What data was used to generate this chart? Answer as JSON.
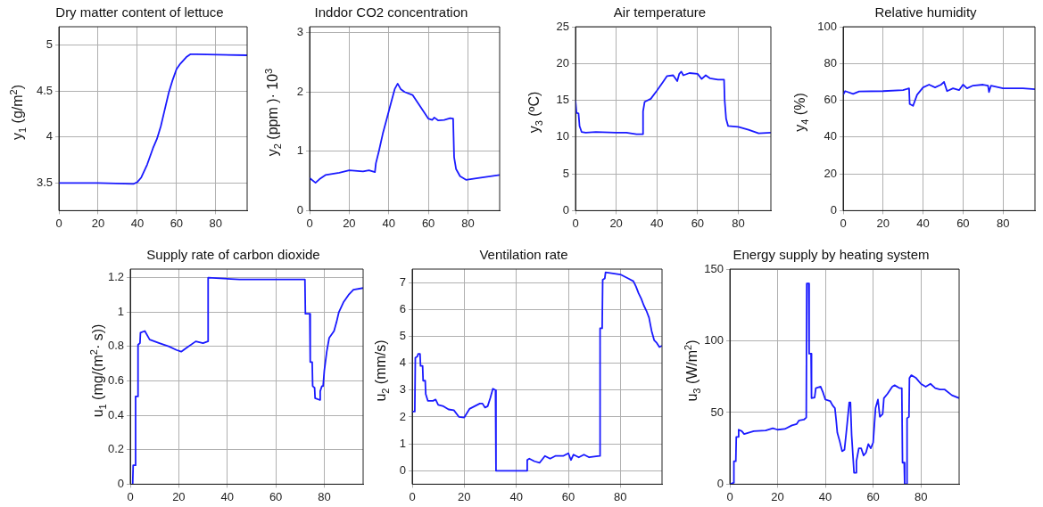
{
  "chart_data": [
    {
      "type": "line",
      "title": "Dry matter content of lettuce",
      "ylabel": "y$_{1}$  (g/m$^{2}$)",
      "color": "#1a1aff",
      "marker": "none",
      "grid": true,
      "xlim": [
        0,
        96
      ],
      "xticks": [
        0,
        20,
        40,
        60,
        80
      ],
      "ylim": [
        3.2,
        5.2
      ],
      "yticks": [
        3.5,
        4,
        4.5,
        5
      ],
      "x": [
        0,
        20,
        38,
        40,
        42,
        45,
        48,
        50,
        52,
        54,
        56,
        58,
        60,
        62,
        65,
        67,
        70,
        96
      ],
      "values": [
        3.5,
        3.5,
        3.49,
        3.51,
        3.56,
        3.7,
        3.88,
        3.98,
        4.12,
        4.3,
        4.48,
        4.62,
        4.74,
        4.8,
        4.87,
        4.9,
        4.9,
        4.89
      ]
    },
    {
      "type": "line",
      "title": "Inddor CO2 concentration",
      "ylabel": "y$_{2}$ (ppm )· 10$^{3}$",
      "color": "#1a1aff",
      "marker": "none",
      "grid": true,
      "xlim": [
        0,
        96
      ],
      "xticks": [
        0,
        20,
        40,
        60,
        80
      ],
      "ylim": [
        0,
        3.1
      ],
      "yticks": [
        0,
        1,
        2,
        3
      ],
      "x": [
        0,
        3,
        5,
        8,
        15,
        20,
        27,
        30,
        33,
        33.5,
        35,
        37,
        39,
        41,
        43,
        44.5,
        46,
        48,
        52,
        55,
        58,
        60,
        62,
        63,
        65,
        68,
        71,
        72.5,
        73,
        74,
        76,
        79,
        85,
        96
      ],
      "values": [
        0.55,
        0.47,
        0.53,
        0.6,
        0.64,
        0.68,
        0.66,
        0.68,
        0.65,
        0.8,
        1.0,
        1.3,
        1.55,
        1.8,
        2.05,
        2.14,
        2.05,
        2.0,
        1.95,
        1.8,
        1.65,
        1.55,
        1.53,
        1.57,
        1.52,
        1.53,
        1.56,
        1.55,
        0.9,
        0.7,
        0.58,
        0.52,
        0.55,
        0.6
      ]
    },
    {
      "type": "line",
      "title": "Air temperature",
      "ylabel": "y$_{3}$ (ºC)",
      "color": "#1a1aff",
      "marker": "none",
      "grid": true,
      "xlim": [
        0,
        96
      ],
      "xticks": [
        0,
        20,
        40,
        60,
        80
      ],
      "ylim": [
        0,
        25
      ],
      "yticks": [
        0,
        5,
        10,
        15,
        20,
        25
      ],
      "x": [
        0,
        0.5,
        1.5,
        2,
        3,
        5,
        10,
        20,
        25,
        30,
        33,
        33.2,
        34,
        37,
        40,
        43,
        45,
        48,
        50,
        51,
        52,
        53,
        56,
        60,
        62,
        64,
        66,
        70,
        73,
        73.3,
        74,
        75,
        80,
        85,
        90,
        96
      ],
      "values": [
        15,
        13.3,
        13.2,
        11.5,
        10.7,
        10.6,
        10.7,
        10.6,
        10.6,
        10.4,
        10.4,
        13.5,
        14.8,
        15.2,
        16.3,
        17.5,
        18.3,
        18.4,
        17.6,
        18.6,
        18.9,
        18.4,
        18.7,
        18.6,
        17.9,
        18.4,
        18.0,
        17.8,
        17.8,
        15,
        12.5,
        11.5,
        11.4,
        11.0,
        10.5,
        10.6
      ]
    },
    {
      "type": "line",
      "title": "Relative humidity",
      "ylabel": "y$_{4}$ (%)",
      "color": "#1a1aff",
      "marker": "none",
      "grid": true,
      "xlim": [
        0,
        96
      ],
      "xticks": [
        0,
        20,
        40,
        60,
        80
      ],
      "ylim": [
        0,
        100
      ],
      "yticks": [
        0,
        20,
        40,
        60,
        80,
        100
      ],
      "x": [
        0,
        1,
        5,
        8,
        20,
        30,
        33,
        33.3,
        35,
        37,
        40,
        43,
        46,
        49,
        50.5,
        52,
        55,
        58,
        60,
        62,
        65,
        70,
        72.5,
        73,
        74,
        80,
        90,
        96
      ],
      "values": [
        63,
        65,
        63.5,
        64.8,
        65,
        65.5,
        66.5,
        58,
        57,
        63,
        67,
        68.5,
        67,
        68.5,
        70,
        65,
        66.5,
        65.5,
        68.5,
        66.5,
        68,
        68.5,
        68,
        64.5,
        68,
        66.5,
        66.5,
        66
      ]
    },
    {
      "type": "line",
      "title": "Supply rate of carbon dioxide",
      "ylabel": "u$_{1}$ (mg/(m$^{2}$· s))",
      "color": "#1a1aff",
      "marker": "none",
      "grid": true,
      "xlim": [
        0,
        96
      ],
      "xticks": [
        0,
        20,
        40,
        60,
        80
      ],
      "ylim": [
        0,
        1.25
      ],
      "yticks": [
        0,
        0.2,
        0.4,
        0.6,
        0.8,
        1,
        1.2
      ],
      "x": [
        1,
        1.2,
        2,
        2.2,
        3,
        3.2,
        4,
        4.2,
        6,
        8,
        12,
        16,
        19,
        21,
        23,
        27,
        30,
        32,
        32.1,
        45,
        55,
        72,
        72.2,
        74,
        74.2,
        75,
        75.2,
        76,
        76.2,
        78,
        78.3,
        79,
        79.5,
        80,
        81,
        82,
        84,
        85,
        86,
        88,
        90,
        92,
        96
      ],
      "values": [
        0,
        0.11,
        0.11,
        0.51,
        0.51,
        0.81,
        0.82,
        0.88,
        0.89,
        0.84,
        0.82,
        0.8,
        0.78,
        0.77,
        0.79,
        0.83,
        0.82,
        0.83,
        1.2,
        1.19,
        1.19,
        1.19,
        0.99,
        0.99,
        0.71,
        0.71,
        0.57,
        0.56,
        0.5,
        0.49,
        0.54,
        0.57,
        0.57,
        0.66,
        0.77,
        0.85,
        0.89,
        0.94,
        1.0,
        1.06,
        1.1,
        1.13,
        1.14
      ]
    },
    {
      "type": "line",
      "title": "Ventilation rate",
      "ylabel": "u$_{2}$ (mm/s)",
      "color": "#1a1aff",
      "marker": "none",
      "grid": true,
      "xlim": [
        0,
        96
      ],
      "xticks": [
        0,
        20,
        40,
        60,
        80
      ],
      "ylim": [
        -0.5,
        7.5
      ],
      "yticks": [
        0,
        1,
        2,
        3,
        4,
        5,
        6,
        7
      ],
      "x": [
        0,
        1,
        1.2,
        2,
        2.3,
        3,
        3.2,
        4,
        4.2,
        5,
        5.2,
        6,
        8,
        9,
        10,
        12,
        14,
        16,
        18,
        20,
        22,
        24,
        26,
        27,
        28,
        29,
        30,
        31,
        32,
        32.2,
        44,
        44.2,
        45,
        47,
        49,
        51,
        53,
        55,
        58,
        60,
        61,
        62,
        64,
        66,
        68,
        72,
        72.2,
        73,
        73.2,
        74,
        74.3,
        80,
        83,
        85,
        86,
        87,
        88,
        89,
        90,
        91,
        92,
        93,
        94,
        95,
        96
      ],
      "values": [
        2.2,
        2.2,
        4.2,
        4.25,
        4.35,
        4.35,
        3.9,
        3.9,
        3.35,
        3.35,
        2.85,
        2.6,
        2.6,
        2.65,
        2.45,
        2.4,
        2.28,
        2.25,
        2.0,
        1.98,
        2.3,
        2.4,
        2.5,
        2.5,
        2.35,
        2.4,
        2.7,
        3.05,
        3.0,
        0,
        0,
        0.4,
        0.45,
        0.35,
        0.3,
        0.55,
        0.45,
        0.55,
        0.55,
        0.65,
        0.4,
        0.6,
        0.5,
        0.6,
        0.5,
        0.55,
        5.3,
        5.3,
        7.1,
        7.15,
        7.38,
        7.3,
        7.15,
        7.05,
        6.85,
        6.6,
        6.4,
        6.15,
        5.95,
        5.7,
        5.2,
        4.85,
        4.75,
        4.6,
        4.65
      ]
    },
    {
      "type": "line",
      "title": "Energy supply by heating system",
      "ylabel": "u$_{3}$ (W/m$^{2}$)",
      "color": "#1a1aff",
      "marker": "none",
      "grid": true,
      "xlim": [
        0,
        96
      ],
      "xticks": [
        0,
        20,
        40,
        60,
        80
      ],
      "ylim": [
        0,
        150
      ],
      "yticks": [
        0,
        50,
        100,
        150
      ],
      "x": [
        0,
        1.5,
        1.7,
        2.5,
        2.7,
        3.5,
        3.7,
        5,
        6,
        10,
        15,
        18,
        20,
        23,
        26,
        28,
        29,
        31,
        32,
        32.2,
        33,
        33.2,
        34,
        34.2,
        35.5,
        36,
        38,
        39,
        40,
        42,
        43,
        44,
        44.5,
        45,
        46,
        47,
        48,
        49,
        50,
        50.5,
        51,
        52,
        52.8,
        53,
        54,
        55,
        56,
        57,
        58,
        59,
        60,
        61,
        62,
        62.8,
        64,
        64.5,
        66,
        68,
        69,
        71,
        72,
        72.3,
        73,
        73.2,
        74,
        74.2,
        75,
        75.2,
        76,
        78,
        80,
        82,
        84,
        86,
        88,
        90,
        93,
        96
      ],
      "values": [
        0,
        1,
        16,
        16,
        33,
        33,
        38,
        37,
        35,
        37,
        37.5,
        39,
        38,
        38.5,
        41,
        42,
        44.5,
        45,
        46.5,
        140,
        140,
        91,
        91,
        60,
        60.5,
        67,
        68,
        64,
        59,
        58,
        55,
        53,
        45,
        36,
        30,
        23,
        24,
        40,
        57,
        57,
        34,
        8,
        8,
        16,
        25,
        25,
        20,
        22,
        28,
        25,
        29,
        53,
        59,
        47,
        49,
        60,
        63,
        68,
        69,
        67,
        67,
        15,
        15,
        0,
        0,
        46,
        47,
        74,
        76,
        74,
        70,
        68,
        70,
        67,
        66,
        66,
        62,
        60
      ]
    }
  ]
}
